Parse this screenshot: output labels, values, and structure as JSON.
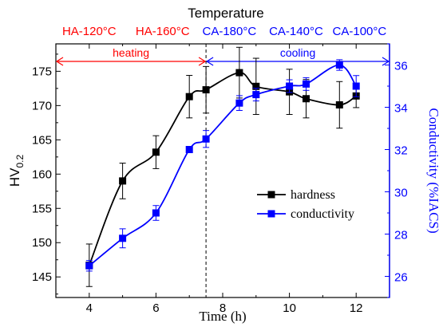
{
  "chart_data": {
    "type": "line",
    "title": "Temperature",
    "xlabel": "Time (h)",
    "ylabel": "HV",
    "ylabel_sub": "0.2",
    "y2label": "Conductivity (%IACS)",
    "xlim": [
      3,
      13
    ],
    "ylim": [
      142,
      179
    ],
    "y2lim": [
      25,
      37
    ],
    "x_ticks": [
      4,
      6,
      8,
      10,
      12
    ],
    "y_ticks": [
      145,
      150,
      155,
      160,
      165,
      170,
      175
    ],
    "y2_ticks": [
      26,
      28,
      30,
      32,
      34,
      36
    ],
    "top_labels": [
      {
        "text": "HA-120°C",
        "x": 4,
        "color": "#ff0000"
      },
      {
        "text": "HA-160°C",
        "x": 6.2,
        "color": "#ff0000"
      },
      {
        "text": "CA-180°C",
        "x": 8.2,
        "color": "#0000ff"
      },
      {
        "text": "CA-140°C",
        "x": 10.2,
        "color": "#0000ff"
      },
      {
        "text": "CA-100°C",
        "x": 12.1,
        "color": "#0000ff"
      }
    ],
    "phases": [
      {
        "text": "heating",
        "x_start": 3,
        "x_end": 7.5,
        "color": "#ff0000"
      },
      {
        "text": "cooling",
        "x_start": 7.5,
        "x_end": 13,
        "color": "#0000ff"
      }
    ],
    "divider_x": 7.5,
    "legend_position": "center-right",
    "series": [
      {
        "name": "hardness",
        "axis": "left",
        "color": "#000000",
        "x": [
          4,
          5,
          6,
          7,
          7.5,
          8.5,
          9,
          10,
          10.5,
          11.5,
          12
        ],
        "values": [
          146.7,
          159.0,
          163.2,
          171.3,
          172.3,
          174.8,
          172.8,
          172.0,
          171.0,
          170.1,
          171.4
        ],
        "errors": [
          3.1,
          2.6,
          2.4,
          3.1,
          3.4,
          3.7,
          4.1,
          3.3,
          2.8,
          3.4,
          1.7
        ]
      },
      {
        "name": "conductivity",
        "axis": "right",
        "color": "#0000ff",
        "x": [
          4,
          5,
          6,
          7,
          7.5,
          8.5,
          9,
          10,
          10.5,
          11.5,
          12
        ],
        "values": [
          26.5,
          27.8,
          29.0,
          32.0,
          32.5,
          34.2,
          34.6,
          35.0,
          35.1,
          36.0,
          35.0
        ],
        "errors": [
          0.25,
          0.45,
          0.35,
          0.15,
          0.4,
          0.35,
          0.3,
          0.3,
          0.3,
          0.25,
          0.5
        ]
      }
    ]
  }
}
